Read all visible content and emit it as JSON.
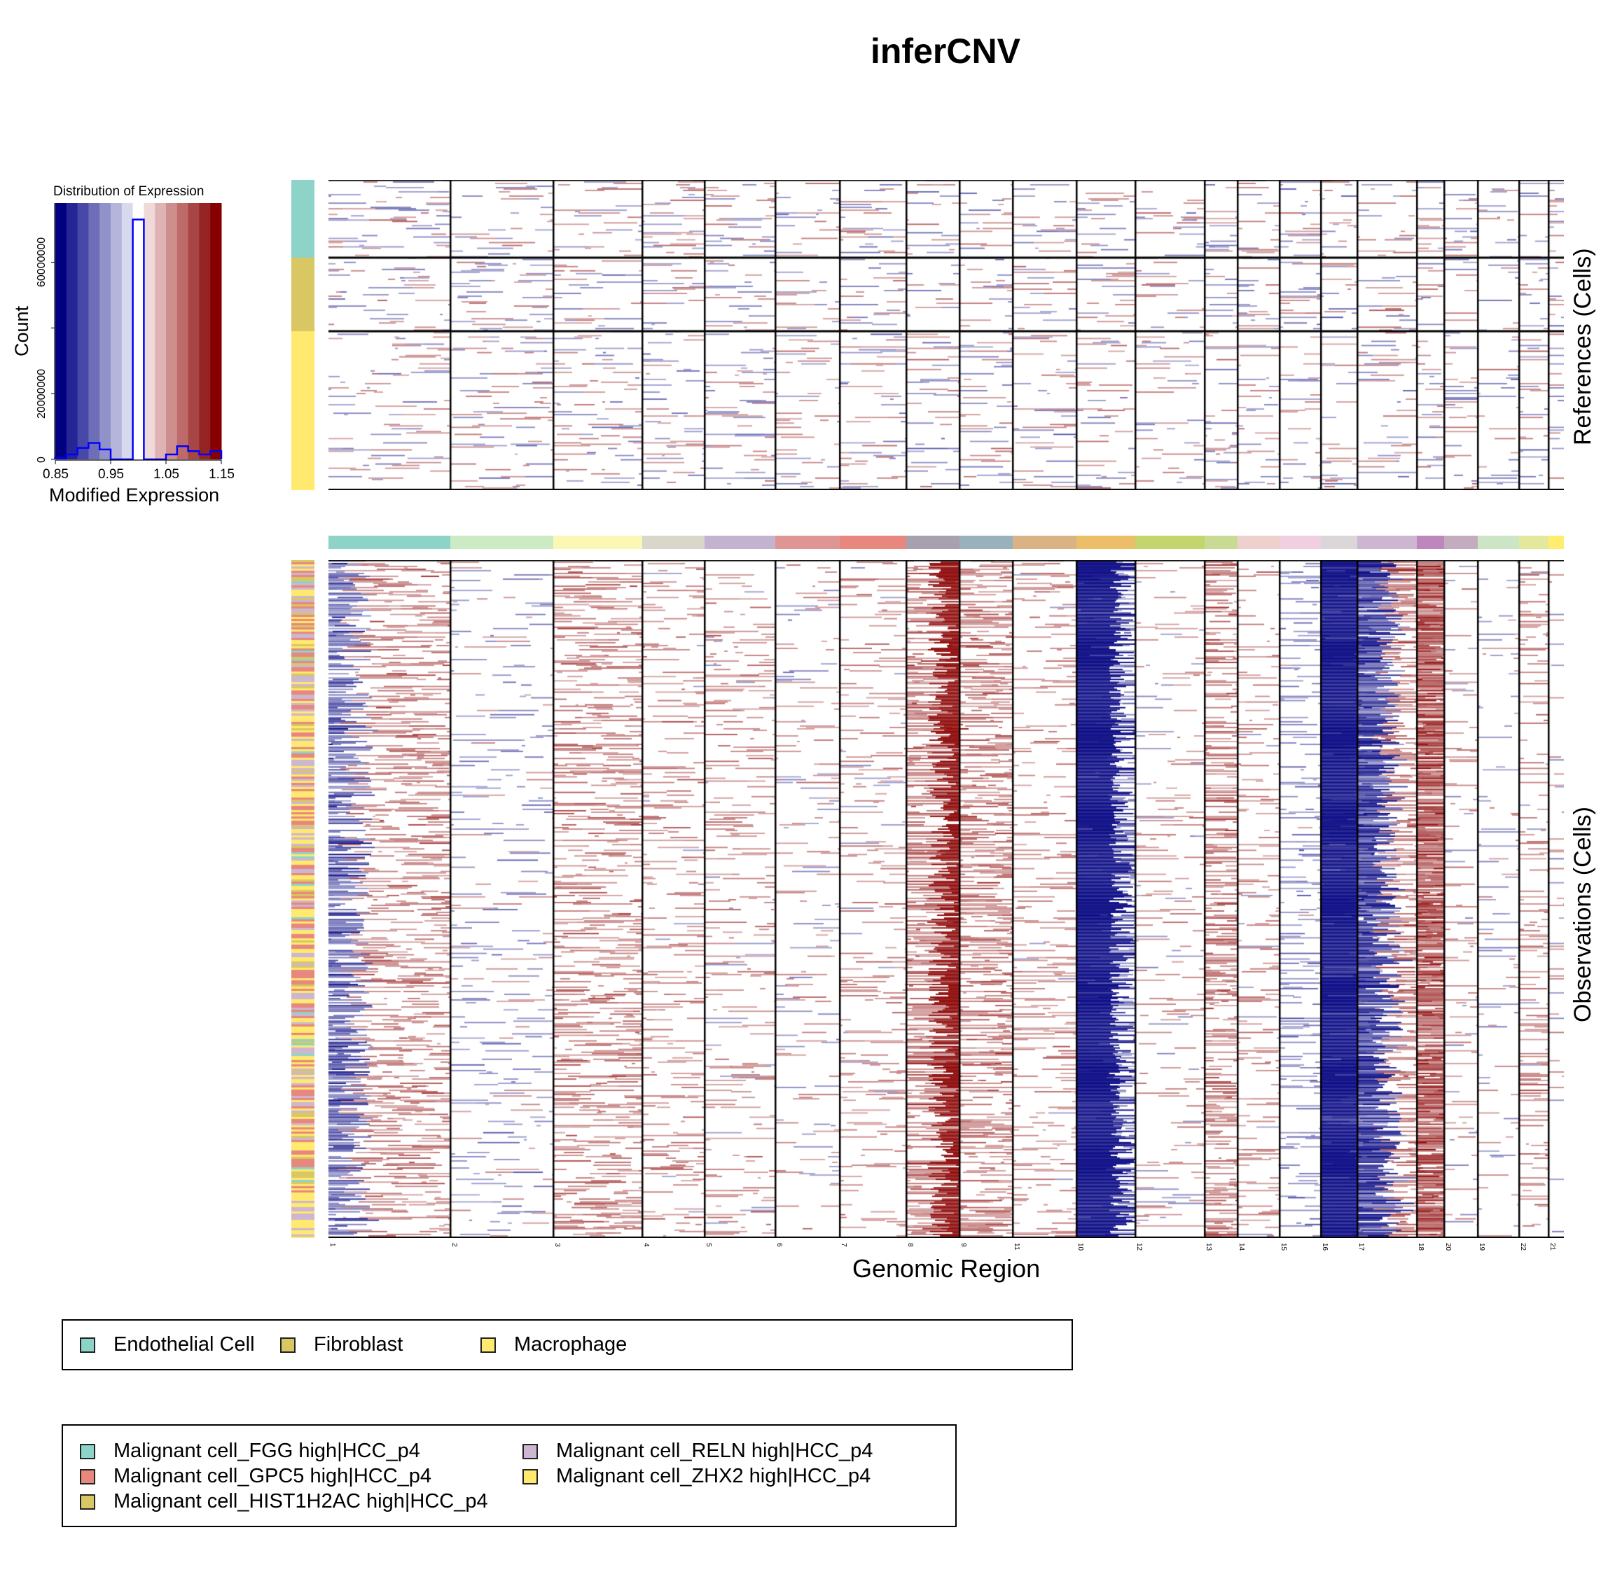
{
  "title": "inferCNV",
  "histogram": {
    "title": "Distribution of Expression",
    "xlabel": "Modified Expression",
    "ylabel": "Count",
    "x_ticks": [
      "0.85",
      "0.95",
      "1.05",
      "1.15"
    ],
    "y_ticks": [
      "0",
      "20000000",
      "60000000"
    ],
    "x_range": [
      0.85,
      1.15
    ],
    "y_range": [
      0,
      78000000
    ],
    "bin_width": 0.02,
    "bin_starts": [
      0.85,
      0.87,
      0.89,
      0.91,
      0.93,
      0.95,
      0.97,
      0.99,
      1.01,
      1.03,
      1.05,
      1.07,
      1.09,
      1.11,
      1.13
    ],
    "counts": [
      500000,
      1500000,
      3500000,
      5000000,
      3000000,
      0,
      0,
      73000000,
      0,
      0,
      1500000,
      4000000,
      2500000,
      1500000,
      2500000
    ],
    "color_scale": [
      "#000080",
      "#252595",
      "#4848a8",
      "#6e6eb8",
      "#9292ca",
      "#b5b5dc",
      "#d9d9ed",
      "#ffffff",
      "#efd9d9",
      "#dfb3b3",
      "#cf8e8e",
      "#bd6a6a",
      "#a84646",
      "#962424",
      "#860000"
    ],
    "outline_color": "#0000ff"
  },
  "chart_data": {
    "type": "heatmap",
    "title": "inferCNV",
    "xlabel": "Genomic Region",
    "ylabel_references": "References (Cells)",
    "ylabel_observations": "Observations (Cells)",
    "value_range": [
      0.85,
      1.15
    ],
    "low_color": "#000080",
    "mid_color": "#ffffff",
    "high_color": "#8b0000",
    "chromosomes": [
      {
        "label": "1",
        "color": "#8dd3c7",
        "relative_width": 174,
        "obs_signal": 0.1
      },
      {
        "label": "2",
        "color": "#ccebc5",
        "relative_width": 147,
        "obs_signal": -0.02
      },
      {
        "label": "3",
        "color": "#fbf8b5",
        "relative_width": 127,
        "obs_signal": 0.1
      },
      {
        "label": "4",
        "color": "#d9d7ca",
        "relative_width": 89,
        "obs_signal": 0.06
      },
      {
        "label": "5",
        "color": "#c2b3d1",
        "relative_width": 101,
        "obs_signal": 0.04
      },
      {
        "label": "6",
        "color": "#e09595",
        "relative_width": 92,
        "obs_signal": 0.0
      },
      {
        "label": "7",
        "color": "#e8877d",
        "relative_width": 95,
        "obs_signal": 0.04
      },
      {
        "label": "8",
        "color": "#a7a0af",
        "relative_width": 75,
        "obs_signal": 0.55
      },
      {
        "label": "9",
        "color": "#99b1bb",
        "relative_width": 76,
        "obs_signal": 0.12
      },
      {
        "label": "11",
        "color": "#d9b383",
        "relative_width": 91,
        "obs_signal": 0.05
      },
      {
        "label": "10",
        "color": "#ebbe67",
        "relative_width": 84,
        "obs_signal": -0.5
      },
      {
        "label": "12",
        "color": "#c3d56c",
        "relative_width": 99,
        "obs_signal": 0.02
      },
      {
        "label": "13",
        "color": "#c9da93",
        "relative_width": 47,
        "obs_signal": 0.12
      },
      {
        "label": "14",
        "color": "#eed1cc",
        "relative_width": 60,
        "obs_signal": 0.05
      },
      {
        "label": "15",
        "color": "#f0cfe0",
        "relative_width": 59,
        "obs_signal": -0.06
      },
      {
        "label": "16",
        "color": "#dbd7d8",
        "relative_width": 52,
        "obs_signal": -0.5
      },
      {
        "label": "17",
        "color": "#cdb6cf",
        "relative_width": 85,
        "obs_signal": 0.12
      },
      {
        "label": "18",
        "color": "#bd87bd",
        "relative_width": 39,
        "obs_signal": 0.25
      },
      {
        "label": "20",
        "color": "#c2acbe",
        "relative_width": 48,
        "obs_signal": 0.02
      },
      {
        "label": "19",
        "color": "#cce5c5",
        "relative_width": 59,
        "obs_signal": 0.0
      },
      {
        "label": "22",
        "color": "#e3e89c",
        "relative_width": 42,
        "obs_signal": 0.06
      },
      {
        "label": "21",
        "color": "#ffed6f",
        "relative_width": 22,
        "obs_signal": 0.0
      }
    ],
    "reference_groups": [
      {
        "name": "Endothelial Cell",
        "color": "#8dd3c7",
        "relative_height": 111
      },
      {
        "name": "Fibroblast",
        "color": "#d9c763",
        "relative_height": 105
      },
      {
        "name": "Macrophage",
        "color": "#ffe96e",
        "relative_height": 227
      }
    ],
    "observation_groups": [
      {
        "name": "Malignant cell_FGG high|HCC_p4",
        "color": "#8dd3c7"
      },
      {
        "name": "Malignant cell_GPC5 high|HCC_p4",
        "color": "#e8877d"
      },
      {
        "name": "Malignant cell_HIST1H2AC high|HCC_p4",
        "color": "#d9c763"
      },
      {
        "name": "Malignant cell_RELN high|HCC_p4",
        "color": "#cdb6cf"
      },
      {
        "name": "Malignant cell_ZHX2 high|HCC_p4",
        "color": "#ffe96e"
      }
    ]
  },
  "legends": {
    "references": [
      "Endothelial Cell",
      "Fibroblast",
      "Macrophage"
    ],
    "observations": [
      "Malignant cell_FGG high|HCC_p4",
      "Malignant cell_GPC5 high|HCC_p4",
      "Malignant cell_HIST1H2AC high|HCC_p4",
      "Malignant cell_RELN high|HCC_p4",
      "Malignant cell_ZHX2 high|HCC_p4"
    ]
  }
}
